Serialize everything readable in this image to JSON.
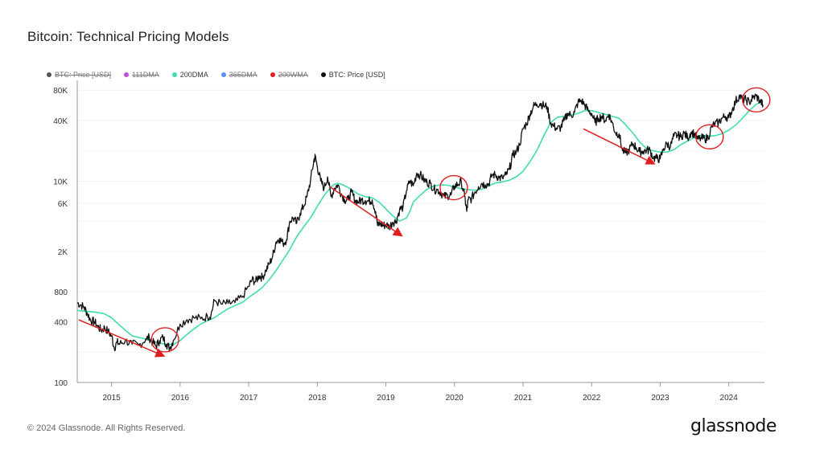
{
  "header": {
    "title": "Bitcoin: Technical Pricing Models"
  },
  "legend": [
    {
      "label": "BTC: Price [USD]",
      "color": "#555555",
      "active": false
    },
    {
      "label": "111DMA",
      "color": "#b94fd6",
      "active": false
    },
    {
      "label": "200DMA",
      "color": "#3fdcb0",
      "active": true
    },
    {
      "label": "365DMA",
      "color": "#5b8def",
      "active": false
    },
    {
      "label": "200WMA",
      "color": "#e02020",
      "active": false
    },
    {
      "label": "BTC: Price [USD]",
      "color": "#111111",
      "active": true
    }
  ],
  "footer": {
    "copyright": "© 2024 Glassnode. All Rights Reserved.",
    "brand": "glassnode"
  },
  "chart_data": {
    "type": "line",
    "yscale": "log",
    "ylim": [
      100,
      100000
    ],
    "xlim": [
      2014.5,
      2024.52
    ],
    "y_ticks": [
      {
        "value": 100,
        "label": "100"
      },
      {
        "value": 400,
        "label": "400"
      },
      {
        "value": 800,
        "label": "800"
      },
      {
        "value": 2000,
        "label": "2K"
      },
      {
        "value": 6000,
        "label": "6K"
      },
      {
        "value": 10000,
        "label": "10K"
      },
      {
        "value": 40000,
        "label": "40K"
      },
      {
        "value": 80000,
        "label": "80K"
      }
    ],
    "x_ticks": [
      "2015",
      "2016",
      "2017",
      "2018",
      "2019",
      "2020",
      "2021",
      "2022",
      "2023",
      "2024"
    ],
    "colors": {
      "price": "#111111",
      "dma200": "#3fdcb0",
      "annotation": "#e02020"
    },
    "series": [
      {
        "name": "BTC: Price [USD]",
        "x": [
          2014.5,
          2014.55,
          2014.6,
          2014.65,
          2014.7,
          2014.75,
          2014.8,
          2014.85,
          2014.9,
          2014.95,
          2015.0,
          2015.04,
          2015.08,
          2015.12,
          2015.2,
          2015.3,
          2015.4,
          2015.5,
          2015.55,
          2015.6,
          2015.65,
          2015.7,
          2015.75,
          2015.8,
          2015.85,
          2015.9,
          2016.0,
          2016.1,
          2016.2,
          2016.3,
          2016.4,
          2016.45,
          2016.5,
          2016.6,
          2016.7,
          2016.8,
          2016.9,
          2017.0,
          2017.05,
          2017.1,
          2017.15,
          2017.2,
          2017.25,
          2017.3,
          2017.35,
          2017.4,
          2017.45,
          2017.5,
          2017.55,
          2017.6,
          2017.65,
          2017.7,
          2017.75,
          2017.8,
          2017.85,
          2017.9,
          2017.95,
          2017.97,
          2018.0,
          2018.05,
          2018.1,
          2018.15,
          2018.2,
          2018.25,
          2018.3,
          2018.35,
          2018.4,
          2018.45,
          2018.5,
          2018.55,
          2018.6,
          2018.65,
          2018.7,
          2018.75,
          2018.8,
          2018.85,
          2018.88,
          2018.92,
          2018.96,
          2019.0,
          2019.05,
          2019.1,
          2019.15,
          2019.2,
          2019.25,
          2019.3,
          2019.35,
          2019.4,
          2019.45,
          2019.5,
          2019.55,
          2019.6,
          2019.65,
          2019.7,
          2019.75,
          2019.8,
          2019.85,
          2019.9,
          2019.95,
          2020.0,
          2020.05,
          2020.1,
          2020.15,
          2020.18,
          2020.2,
          2020.25,
          2020.3,
          2020.35,
          2020.4,
          2020.45,
          2020.5,
          2020.55,
          2020.6,
          2020.65,
          2020.7,
          2020.75,
          2020.8,
          2020.85,
          2020.9,
          2020.95,
          2021.0,
          2021.05,
          2021.1,
          2021.15,
          2021.2,
          2021.25,
          2021.3,
          2021.35,
          2021.4,
          2021.45,
          2021.5,
          2021.55,
          2021.6,
          2021.65,
          2021.7,
          2021.75,
          2021.8,
          2021.85,
          2021.9,
          2021.95,
          2022.0,
          2022.05,
          2022.1,
          2022.15,
          2022.2,
          2022.25,
          2022.3,
          2022.35,
          2022.4,
          2022.45,
          2022.5,
          2022.55,
          2022.6,
          2022.65,
          2022.7,
          2022.75,
          2022.8,
          2022.85,
          2022.9,
          2022.95,
          2023.0,
          2023.05,
          2023.1,
          2023.15,
          2023.2,
          2023.25,
          2023.3,
          2023.35,
          2023.4,
          2023.45,
          2023.5,
          2023.55,
          2023.6,
          2023.65,
          2023.7,
          2023.75,
          2023.8,
          2023.85,
          2023.9,
          2023.95,
          2024.0,
          2024.05,
          2024.1,
          2024.15,
          2024.2,
          2024.25,
          2024.3,
          2024.35,
          2024.4,
          2024.45,
          2024.5
        ],
        "y": [
          620,
          590,
          560,
          480,
          410,
          400,
          360,
          330,
          350,
          320,
          290,
          220,
          250,
          240,
          260,
          240,
          235,
          270,
          280,
          250,
          230,
          260,
          280,
          240,
          220,
          260,
          380,
          420,
          440,
          430,
          450,
          470,
          650,
          600,
          610,
          620,
          700,
          900,
          1050,
          1000,
          1150,
          1100,
          1300,
          1500,
          1800,
          2500,
          2700,
          2400,
          2600,
          4000,
          4300,
          3800,
          4800,
          5600,
          7000,
          10000,
          16000,
          17500,
          14000,
          10000,
          8500,
          11000,
          7000,
          8500,
          9200,
          7500,
          6500,
          6500,
          7800,
          6400,
          6200,
          6500,
          6400,
          6300,
          6500,
          5000,
          3600,
          3800,
          3600,
          3700,
          3500,
          3900,
          4000,
          5200,
          5500,
          8000,
          10000,
          9000,
          12000,
          11500,
          10400,
          9700,
          9500,
          8300,
          8200,
          7700,
          7000,
          7200,
          7300,
          8900,
          9300,
          9800,
          7000,
          5000,
          6500,
          6700,
          7800,
          8800,
          9500,
          9200,
          9400,
          11500,
          11500,
          10800,
          10700,
          11500,
          13000,
          18000,
          19500,
          23000,
          33000,
          37000,
          46000,
          55000,
          58000,
          59000,
          56000,
          55000,
          38000,
          35000,
          33000,
          34000,
          40000,
          47000,
          45000,
          48000,
          60000,
          63000,
          57000,
          50000,
          47000,
          38000,
          42000,
          44000,
          40000,
          46000,
          38000,
          30000,
          29500,
          20000,
          19000,
          20500,
          23500,
          21500,
          19500,
          19800,
          20200,
          20300,
          17000,
          16800,
          16600,
          21000,
          23500,
          22000,
          28000,
          28500,
          27500,
          30000,
          27000,
          30500,
          29500,
          26000,
          26500,
          26300,
          27000,
          34500,
          37000,
          38000,
          42000,
          44000,
          42500,
          51000,
          62000,
          70000,
          65000,
          64000,
          61000,
          67000,
          70000,
          63000,
          57000
        ]
      },
      {
        "name": "200DMA",
        "x": [
          2014.5,
          2014.6,
          2014.7,
          2014.8,
          2014.9,
          2015.0,
          2015.1,
          2015.2,
          2015.3,
          2015.4,
          2015.5,
          2015.6,
          2015.7,
          2015.8,
          2015.9,
          2016.0,
          2016.1,
          2016.2,
          2016.3,
          2016.4,
          2016.5,
          2016.6,
          2016.7,
          2016.8,
          2016.9,
          2017.0,
          2017.1,
          2017.2,
          2017.3,
          2017.4,
          2017.5,
          2017.6,
          2017.7,
          2017.8,
          2017.9,
          2018.0,
          2018.1,
          2018.2,
          2018.25,
          2018.3,
          2018.35,
          2018.4,
          2018.5,
          2018.6,
          2018.7,
          2018.8,
          2018.9,
          2019.0,
          2019.1,
          2019.2,
          2019.3,
          2019.35,
          2019.4,
          2019.5,
          2019.6,
          2019.7,
          2019.8,
          2019.9,
          2020.0,
          2020.1,
          2020.2,
          2020.3,
          2020.4,
          2020.5,
          2020.6,
          2020.7,
          2020.8,
          2020.9,
          2021.0,
          2021.1,
          2021.2,
          2021.3,
          2021.4,
          2021.5,
          2021.6,
          2021.7,
          2021.8,
          2021.9,
          2022.0,
          2022.1,
          2022.2,
          2022.3,
          2022.4,
          2022.5,
          2022.6,
          2022.7,
          2022.8,
          2022.9,
          2023.0,
          2023.1,
          2023.2,
          2023.3,
          2023.4,
          2023.5,
          2023.6,
          2023.7,
          2023.8,
          2023.9,
          2024.0,
          2024.1,
          2024.2,
          2024.3,
          2024.4,
          2024.5
        ],
        "y": [
          520,
          510,
          505,
          495,
          480,
          440,
          380,
          330,
          290,
          280,
          270,
          255,
          245,
          240,
          238,
          260,
          300,
          340,
          380,
          410,
          440,
          490,
          540,
          580,
          620,
          700,
          780,
          880,
          1050,
          1300,
          1650,
          2100,
          2800,
          3500,
          4300,
          5600,
          7200,
          8700,
          9300,
          9500,
          9300,
          9000,
          8200,
          7400,
          7000,
          6800,
          6200,
          5300,
          4500,
          4000,
          4300,
          5000,
          6200,
          7200,
          8300,
          8900,
          9200,
          9100,
          8700,
          8400,
          8200,
          8100,
          8300,
          9000,
          9600,
          9800,
          10200,
          11000,
          12500,
          15500,
          20000,
          28000,
          38000,
          43000,
          44000,
          45000,
          47000,
          50000,
          50000,
          48000,
          46000,
          44000,
          42000,
          36000,
          30000,
          24500,
          21000,
          20000,
          19400,
          19400,
          20500,
          23000,
          25000,
          27000,
          28500,
          28000,
          28200,
          29500,
          32000,
          36000,
          42000,
          50000,
          58000,
          62000
        ]
      }
    ],
    "annotations": {
      "circles": [
        {
          "x": 2015.78,
          "y": 265
        },
        {
          "x": 2019.99,
          "y": 8600
        },
        {
          "x": 2023.72,
          "y": 27500
        },
        {
          "x": 2024.4,
          "y": 64000
        }
      ],
      "arrows": [
        {
          "from": [
            2014.52,
            420
          ],
          "to": [
            2015.75,
            185
          ]
        },
        {
          "from": [
            2018.18,
            8800
          ],
          "to": [
            2019.22,
            2900
          ]
        },
        {
          "from": [
            2021.88,
            33000
          ],
          "to": [
            2022.9,
            15000
          ]
        }
      ]
    }
  }
}
